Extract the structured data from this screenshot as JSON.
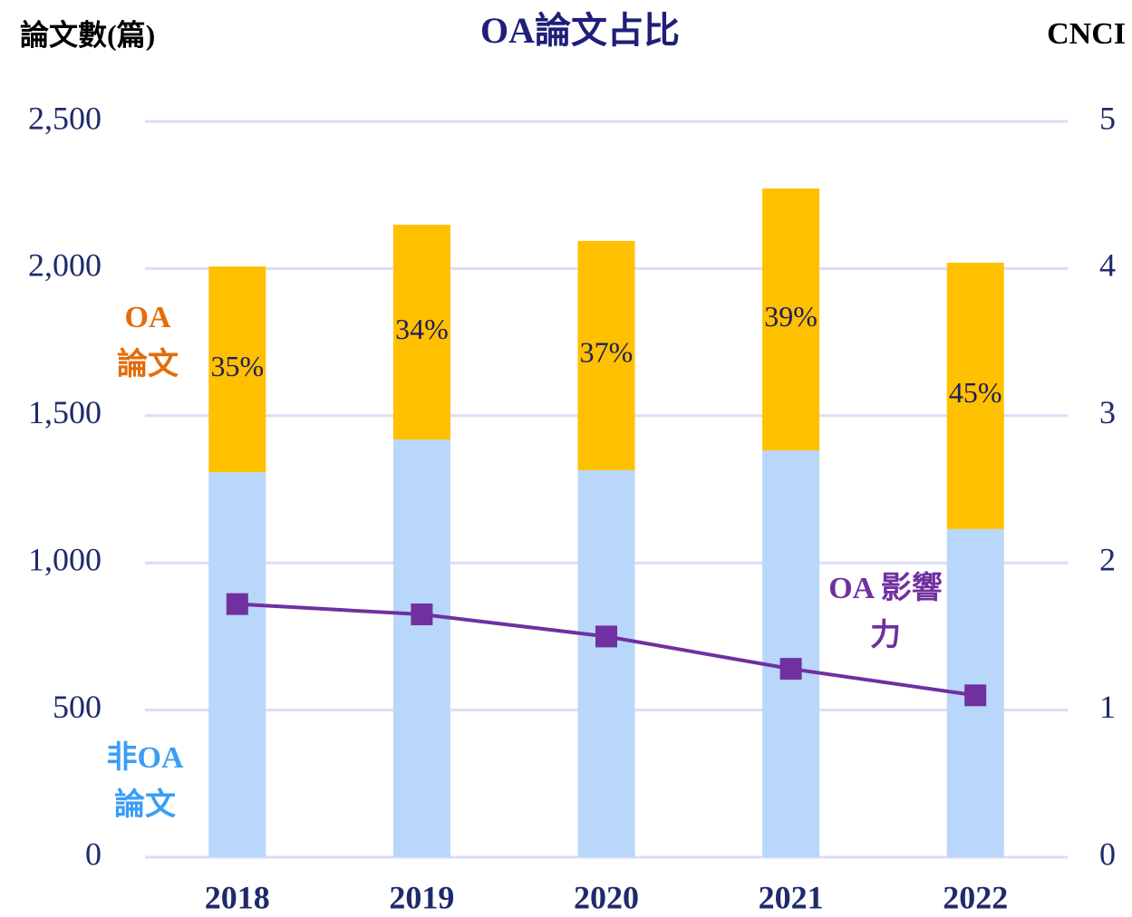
{
  "chart_data": {
    "type": "stacked-bar-line",
    "title": "OA論文占比",
    "y_label": "論文數(篇)",
    "y2_label": "CNCI",
    "categories": [
      "2018",
      "2019",
      "2020",
      "2021",
      "2022"
    ],
    "series": [
      {
        "name": "非OA 論文",
        "color": "#b8d7fb",
        "values": [
          1308,
          1419,
          1315,
          1382,
          1115
        ]
      },
      {
        "name": "OA 論文",
        "color": "#ffc000",
        "values": [
          699,
          730,
          779,
          890,
          905
        ],
        "share_labels": [
          "35%",
          "34%",
          "37%",
          "39%",
          "45%"
        ]
      },
      {
        "name": "OA 影響力",
        "color": "#7030a0",
        "type": "line",
        "axis": "y2",
        "values": [
          1.72,
          1.65,
          1.5,
          1.28,
          1.1
        ]
      }
    ],
    "ylim": [
      0,
      2500
    ],
    "yticks": [
      0,
      500,
      {
        "value": 1000,
        "label": "1,000"
      },
      {
        "value": 1500,
        "label": "1,500"
      },
      {
        "value": 2000,
        "label": "2,000"
      },
      {
        "value": 2500,
        "label": "2,500"
      }
    ],
    "y2lim": [
      0,
      5
    ],
    "y2ticks": [
      0,
      1,
      2,
      3,
      4,
      5
    ],
    "grid": true
  }
}
